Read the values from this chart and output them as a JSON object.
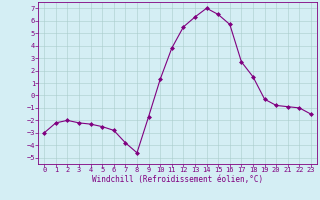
{
  "x": [
    0,
    1,
    2,
    3,
    4,
    5,
    6,
    7,
    8,
    9,
    10,
    11,
    12,
    13,
    14,
    15,
    16,
    17,
    18,
    19,
    20,
    21,
    22,
    23
  ],
  "y": [
    -3.0,
    -2.2,
    -2.0,
    -2.2,
    -2.3,
    -2.5,
    -2.8,
    -3.8,
    -4.6,
    -1.7,
    1.3,
    3.8,
    5.5,
    6.3,
    7.0,
    6.5,
    5.7,
    2.7,
    1.5,
    -0.3,
    -0.8,
    -0.9,
    -1.0,
    -1.5
  ],
  "line_color": "#800080",
  "marker": "D",
  "markersize": 2.0,
  "linewidth": 0.8,
  "xlim": [
    -0.5,
    23.5
  ],
  "ylim": [
    -5.5,
    7.5
  ],
  "yticks": [
    -5,
    -4,
    -3,
    -2,
    -1,
    0,
    1,
    2,
    3,
    4,
    5,
    6,
    7
  ],
  "xticks": [
    0,
    1,
    2,
    3,
    4,
    5,
    6,
    7,
    8,
    9,
    10,
    11,
    12,
    13,
    14,
    15,
    16,
    17,
    18,
    19,
    20,
    21,
    22,
    23
  ],
  "xlabel": "Windchill (Refroidissement éolien,°C)",
  "bg_color": "#d4eef4",
  "grid_color": "#aacccc",
  "tick_color": "#800080",
  "label_color": "#800080",
  "xlabel_fontsize": 5.5,
  "tick_fontsize": 5.0
}
